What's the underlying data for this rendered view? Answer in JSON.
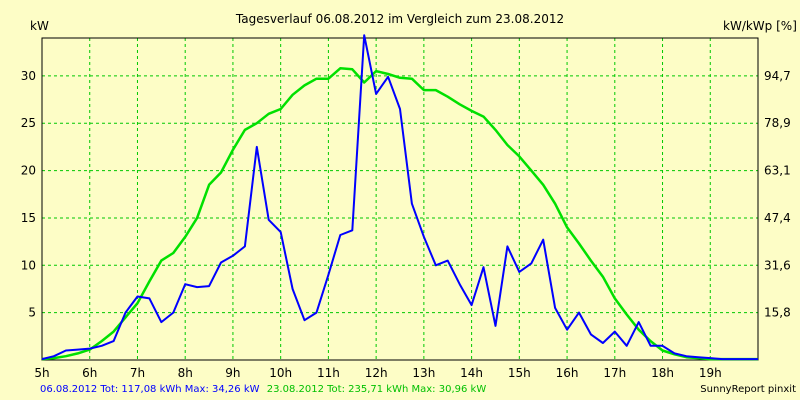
{
  "chart_data": {
    "type": "line",
    "title": "Tagesverlauf 06.08.2012 im Vergleich zum 23.08.2012",
    "ylabel_left": "kW",
    "ylabel_right": "kW/kWp [%]",
    "x_ticks": [
      "5h",
      "6h",
      "7h",
      "8h",
      "9h",
      "10h",
      "11h",
      "12h",
      "13h",
      "14h",
      "15h",
      "16h",
      "17h",
      "18h",
      "19h"
    ],
    "y_ticks_left": [
      "5",
      "10",
      "15",
      "20",
      "25",
      "30"
    ],
    "y_ticks_right": [
      "15,8",
      "31,6",
      "47,4",
      "63,1",
      "78,9",
      "94,7"
    ],
    "xlim": [
      5,
      20
    ],
    "ylim": [
      0,
      34
    ],
    "grid": true,
    "series": [
      {
        "name": "06.08.2012",
        "color": "#0000ff",
        "x": [
          5.0,
          5.25,
          5.5,
          5.75,
          6.0,
          6.25,
          6.5,
          6.75,
          7.0,
          7.25,
          7.5,
          7.75,
          8.0,
          8.25,
          8.5,
          8.75,
          9.0,
          9.25,
          9.5,
          9.75,
          10.0,
          10.25,
          10.5,
          10.75,
          11.0,
          11.25,
          11.5,
          11.75,
          12.0,
          12.25,
          12.5,
          12.75,
          13.0,
          13.25,
          13.5,
          13.75,
          14.0,
          14.25,
          14.5,
          14.75,
          15.0,
          15.25,
          15.5,
          15.75,
          16.0,
          16.25,
          16.5,
          16.75,
          17.0,
          17.25,
          17.5,
          17.75,
          18.0,
          18.25,
          18.5,
          18.75,
          19.0,
          19.25,
          19.5,
          19.75,
          20.0
        ],
        "values": [
          0.1,
          0.4,
          1.0,
          1.1,
          1.2,
          1.5,
          2.0,
          5.0,
          6.7,
          6.5,
          4.0,
          5.0,
          8.0,
          7.7,
          7.8,
          10.3,
          11.0,
          12.0,
          22.5,
          14.8,
          13.5,
          7.5,
          4.2,
          5.0,
          9.0,
          13.2,
          13.7,
          34.3,
          28.1,
          29.9,
          26.5,
          16.5,
          13.0,
          10.0,
          10.5,
          8.0,
          5.8,
          9.8,
          3.6,
          12.0,
          9.3,
          10.2,
          12.7,
          5.5,
          3.2,
          5.0,
          2.7,
          1.8,
          3.0,
          1.5,
          4.0,
          1.5,
          1.5,
          0.7,
          0.4,
          0.3,
          0.2,
          0.1,
          0.1,
          0.1,
          0.1
        ]
      },
      {
        "name": "23.08.2012",
        "color": "#00e000",
        "x": [
          5.0,
          5.25,
          5.5,
          5.75,
          6.0,
          6.25,
          6.5,
          6.75,
          7.0,
          7.25,
          7.5,
          7.75,
          8.0,
          8.25,
          8.5,
          8.75,
          9.0,
          9.25,
          9.5,
          9.75,
          10.0,
          10.25,
          10.5,
          10.75,
          11.0,
          11.25,
          11.5,
          11.75,
          12.0,
          12.25,
          12.5,
          12.75,
          13.0,
          13.25,
          13.5,
          13.75,
          14.0,
          14.25,
          14.5,
          14.75,
          15.0,
          15.25,
          15.5,
          15.75,
          16.0,
          16.25,
          16.5,
          16.75,
          17.0,
          17.25,
          17.5,
          17.75,
          18.0,
          18.25,
          18.5,
          18.75,
          19.0,
          19.25,
          19.5,
          19.75,
          20.0
        ],
        "values": [
          0.1,
          0.2,
          0.4,
          0.7,
          1.1,
          2.0,
          3.0,
          4.5,
          6.0,
          8.3,
          10.5,
          11.3,
          13.0,
          15.0,
          18.5,
          19.8,
          22.2,
          24.3,
          25.0,
          26.0,
          26.5,
          28.0,
          29.0,
          29.7,
          29.7,
          30.8,
          30.7,
          29.3,
          30.5,
          30.2,
          29.8,
          29.7,
          28.5,
          28.5,
          27.8,
          27.0,
          26.3,
          25.7,
          24.3,
          22.7,
          21.5,
          20.0,
          18.5,
          16.5,
          14.0,
          12.3,
          10.5,
          8.8,
          6.5,
          4.8,
          3.2,
          2.0,
          1.0,
          0.6,
          0.3,
          0.2,
          0.1,
          0.1,
          0.1,
          0.1,
          0.1
        ]
      }
    ],
    "footer": {
      "left_prefix": "06.08.2012 Tot: 117,08 kWh Max: 34,26 kW",
      "left_suffix": "23.08.2012 Tot: 235,71 kWh Max: 30,96 kW",
      "right": "SunnyReport pinxit"
    }
  }
}
